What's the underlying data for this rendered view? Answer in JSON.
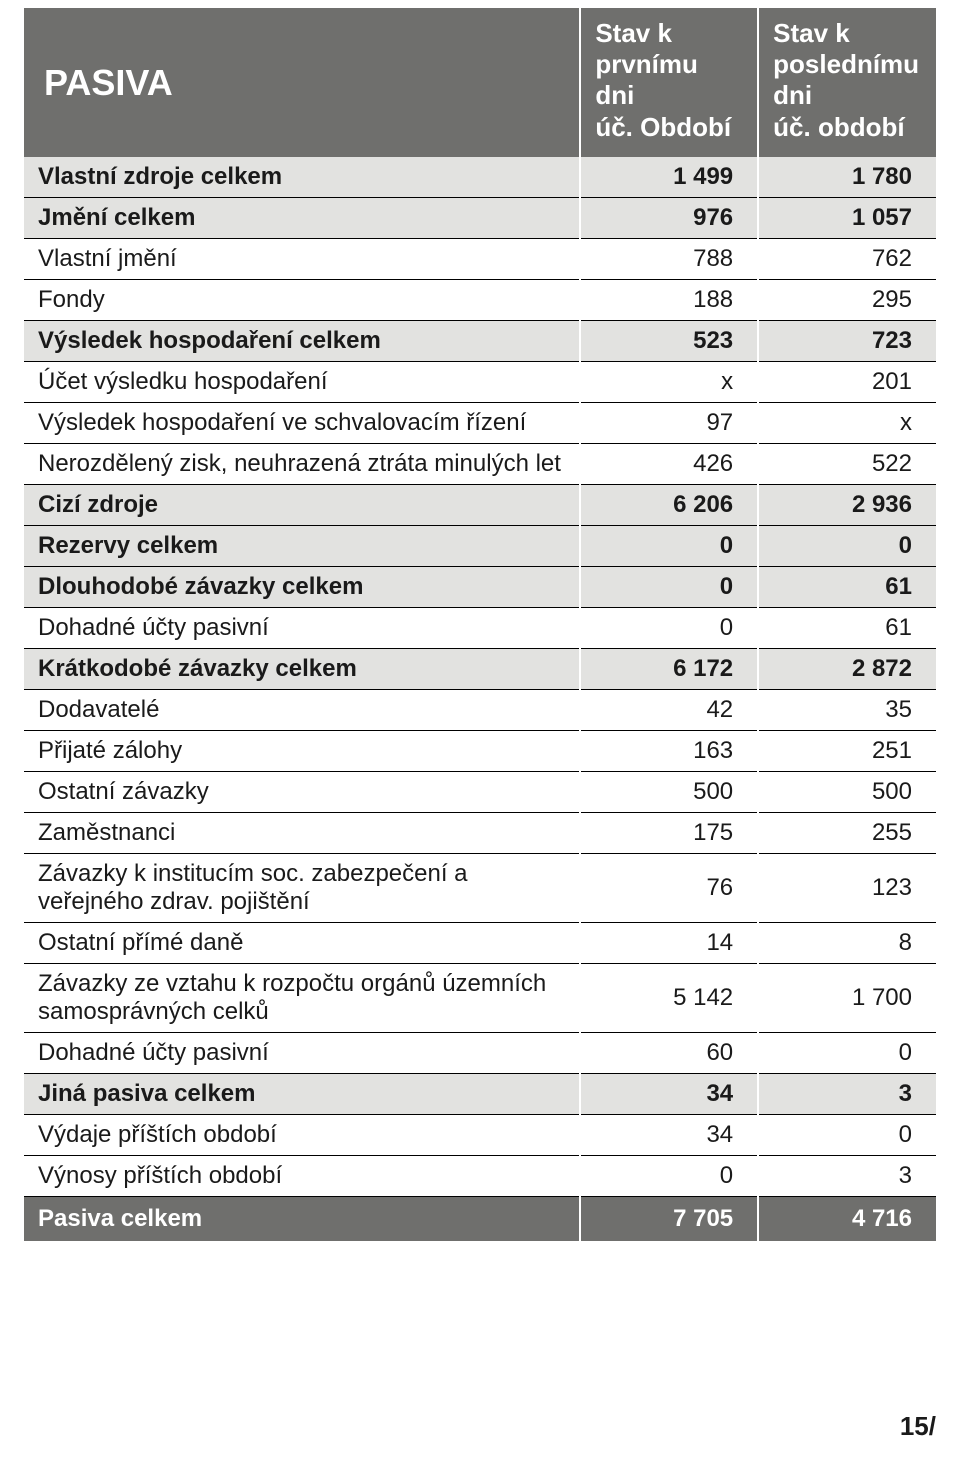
{
  "colors": {
    "header_bg": "#6f6f6d",
    "header_text": "#ffffff",
    "shade_bg": "#e2e2e0",
    "plain_bg": "#ffffff",
    "text": "#1a1a1a",
    "row_border": "#000000"
  },
  "fonts": {
    "title_size_pt": 36,
    "header_size_pt": 26,
    "body_size_pt": 24,
    "footer_size_pt": 26
  },
  "table": {
    "title": "PASIVA",
    "col1_header": "Stav k\nprvnímu dni\núč. Období",
    "col2_header": "Stav k\nposlednímu dni\núč. období",
    "rows": [
      {
        "label": "Vlastní zdroje celkem",
        "c1": "1 499",
        "c2": "1 780",
        "bold": true,
        "shade": true
      },
      {
        "label": "Jmění celkem",
        "c1": "976",
        "c2": "1 057",
        "bold": true,
        "shade": true
      },
      {
        "label": "Vlastní jmění",
        "c1": "788",
        "c2": "762",
        "bold": false,
        "shade": false
      },
      {
        "label": "Fondy",
        "c1": "188",
        "c2": "295",
        "bold": false,
        "shade": false
      },
      {
        "label": "Výsledek hospodaření celkem",
        "c1": "523",
        "c2": "723",
        "bold": true,
        "shade": true
      },
      {
        "label": "Účet výsledku hospodaření",
        "c1": "x",
        "c2": "201",
        "bold": false,
        "shade": false
      },
      {
        "label": "Výsledek hospodaření ve schvalovacím řízení",
        "c1": "97",
        "c2": "x",
        "bold": false,
        "shade": false
      },
      {
        "label": "Nerozdělený zisk, neuhrazená ztráta minulých let",
        "c1": "426",
        "c2": "522",
        "bold": false,
        "shade": false
      },
      {
        "label": "Cizí zdroje",
        "c1": "6 206",
        "c2": "2 936",
        "bold": true,
        "shade": true
      },
      {
        "label": "Rezervy celkem",
        "c1": "0",
        "c2": "0",
        "bold": true,
        "shade": true
      },
      {
        "label": "Dlouhodobé závazky celkem",
        "c1": "0",
        "c2": "61",
        "bold": true,
        "shade": true
      },
      {
        "label": "Dohadné účty pasivní",
        "c1": "0",
        "c2": "61",
        "bold": false,
        "shade": false
      },
      {
        "label": "Krátkodobé závazky celkem",
        "c1": "6 172",
        "c2": "2 872",
        "bold": true,
        "shade": true
      },
      {
        "label": "Dodavatelé",
        "c1": "42",
        "c2": "35",
        "bold": false,
        "shade": false
      },
      {
        "label": "Přijaté zálohy",
        "c1": "163",
        "c2": "251",
        "bold": false,
        "shade": false
      },
      {
        "label": "Ostatní závazky",
        "c1": "500",
        "c2": "500",
        "bold": false,
        "shade": false
      },
      {
        "label": "Zaměstnanci",
        "c1": "175",
        "c2": "255",
        "bold": false,
        "shade": false
      },
      {
        "label": "Závazky k institucím soc. zabezpečení a veřejného zdrav. pojištění",
        "c1": "76",
        "c2": "123",
        "bold": false,
        "shade": false
      },
      {
        "label": "Ostatní přímé daně",
        "c1": "14",
        "c2": "8",
        "bold": false,
        "shade": false
      },
      {
        "label": "Závazky ze vztahu k rozpočtu orgánů územních samosprávných celků",
        "c1": "5 142",
        "c2": "1 700",
        "bold": false,
        "shade": false
      },
      {
        "label": "Dohadné účty pasivní",
        "c1": "60",
        "c2": "0",
        "bold": false,
        "shade": false
      },
      {
        "label": "Jiná pasiva celkem",
        "c1": "34",
        "c2": "3",
        "bold": true,
        "shade": true
      },
      {
        "label": "Výdaje příštích období",
        "c1": "34",
        "c2": "0",
        "bold": false,
        "shade": false
      },
      {
        "label": "Výnosy příštích období",
        "c1": "0",
        "c2": "3",
        "bold": false,
        "shade": false
      }
    ],
    "total": {
      "label": "Pasiva celkem",
      "c1": "7 705",
      "c2": "4 716"
    }
  },
  "page_number": "15/"
}
